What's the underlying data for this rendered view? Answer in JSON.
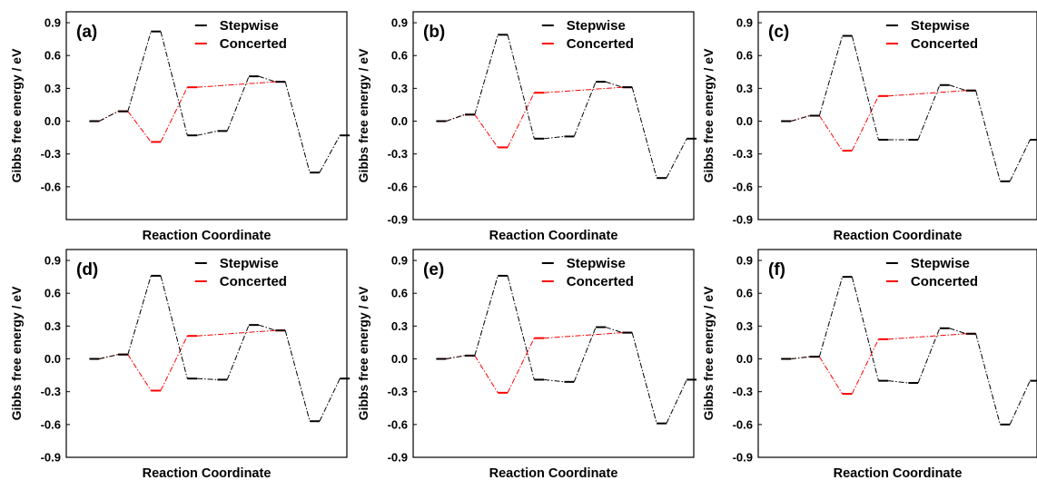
{
  "figure": {
    "colors": {
      "stepwise": "#000000",
      "concerted": "#ff0000",
      "frame": "#000000"
    },
    "ylabel": "Gibbs free energy / eV",
    "xlabel": "Reaction Coordinate",
    "legend_position": "top-right"
  },
  "chart_data": [
    {
      "type": "line",
      "panel_label": "(a)",
      "xlabel": "Reaction Coordinate",
      "ylabel": "Gibbs free energy / eV",
      "ylim": [
        -0.9,
        1.0
      ],
      "yticks": [
        "0.9",
        "0.6",
        "0.3",
        "0.0",
        "-0.3",
        "-0.6"
      ],
      "series": [
        {
          "name": "Stepwise",
          "color": "#000000",
          "values": [
            0.0,
            0.09,
            0.82,
            -0.13,
            -0.09,
            0.41,
            0.36,
            -0.47,
            -0.13
          ]
        },
        {
          "name": "Concerted",
          "color": "#ff0000",
          "values": [
            0.0,
            0.09,
            -0.19,
            0.31,
            null,
            null,
            0.36
          ]
        }
      ]
    },
    {
      "type": "line",
      "panel_label": "(b)",
      "xlabel": "Reaction Coordinate",
      "ylabel": "Gibbs free energy / eV",
      "ylim": [
        -0.9,
        1.0
      ],
      "yticks": [
        "0.9",
        "0.6",
        "0.3",
        "0.0",
        "-0.3",
        "-0.6",
        "-0.9"
      ],
      "series": [
        {
          "name": "Stepwise",
          "color": "#000000",
          "values": [
            0.0,
            0.06,
            0.79,
            -0.16,
            -0.14,
            0.36,
            0.31,
            -0.52,
            -0.16
          ]
        },
        {
          "name": "Concerted",
          "color": "#ff0000",
          "values": [
            0.0,
            0.06,
            -0.24,
            0.26,
            null,
            null,
            0.31
          ]
        }
      ]
    },
    {
      "type": "line",
      "panel_label": "(c)",
      "xlabel": "Reaction Coordinate",
      "ylabel": "Gibbs free energy / eV",
      "ylim": [
        -0.9,
        1.0
      ],
      "yticks": [
        "0.9",
        "0.6",
        "0.3",
        "0.0",
        "-0.3",
        "-0.6",
        "-0.9"
      ],
      "series": [
        {
          "name": "Stepwise",
          "color": "#000000",
          "values": [
            0.0,
            0.05,
            0.78,
            -0.17,
            -0.17,
            0.33,
            0.28,
            -0.55,
            -0.17
          ]
        },
        {
          "name": "Concerted",
          "color": "#ff0000",
          "values": [
            0.0,
            0.05,
            -0.27,
            0.23,
            null,
            null,
            0.28
          ]
        }
      ]
    },
    {
      "type": "line",
      "panel_label": "(d)",
      "xlabel": "Reaction Coordinate",
      "ylabel": "Gibbs free energy / eV",
      "ylim": [
        -0.9,
        1.0
      ],
      "yticks": [
        "0.9",
        "0.6",
        "0.3",
        "0.0",
        "-0.3",
        "-0.6",
        "-0.9"
      ],
      "series": [
        {
          "name": "Stepwise",
          "color": "#000000",
          "values": [
            0.0,
            0.04,
            0.76,
            -0.18,
            -0.19,
            0.31,
            0.26,
            -0.57,
            -0.18
          ]
        },
        {
          "name": "Concerted",
          "color": "#ff0000",
          "values": [
            0.0,
            0.04,
            -0.29,
            0.21,
            null,
            null,
            0.26
          ]
        }
      ]
    },
    {
      "type": "line",
      "panel_label": "(e)",
      "xlabel": "Reaction Coordinate",
      "ylabel": "Gibbs free energy / eV",
      "ylim": [
        -0.9,
        1.0
      ],
      "yticks": [
        "0.9",
        "0.6",
        "0.3",
        "0.0",
        "-0.3",
        "-0.6",
        "-0.9"
      ],
      "series": [
        {
          "name": "Stepwise",
          "color": "#000000",
          "values": [
            0.0,
            0.03,
            0.76,
            -0.19,
            -0.21,
            0.29,
            0.24,
            -0.59,
            -0.19
          ]
        },
        {
          "name": "Concerted",
          "color": "#ff0000",
          "values": [
            0.0,
            0.03,
            -0.31,
            0.19,
            null,
            null,
            0.24
          ]
        }
      ]
    },
    {
      "type": "line",
      "panel_label": "(f)",
      "xlabel": "Reaction Coordinate",
      "ylabel": "Gibbs free energy / eV",
      "ylim": [
        -0.9,
        1.0
      ],
      "yticks": [
        "0.9",
        "0.6",
        "0.3",
        "0.0",
        "-0.3",
        "-0.6",
        "-0.9"
      ],
      "series": [
        {
          "name": "Stepwise",
          "color": "#000000",
          "values": [
            0.0,
            0.02,
            0.75,
            -0.2,
            -0.22,
            0.28,
            0.23,
            -0.6,
            -0.2
          ]
        },
        {
          "name": "Concerted",
          "color": "#ff0000",
          "values": [
            0.0,
            0.02,
            -0.32,
            0.18,
            null,
            null,
            0.23
          ]
        }
      ]
    }
  ]
}
